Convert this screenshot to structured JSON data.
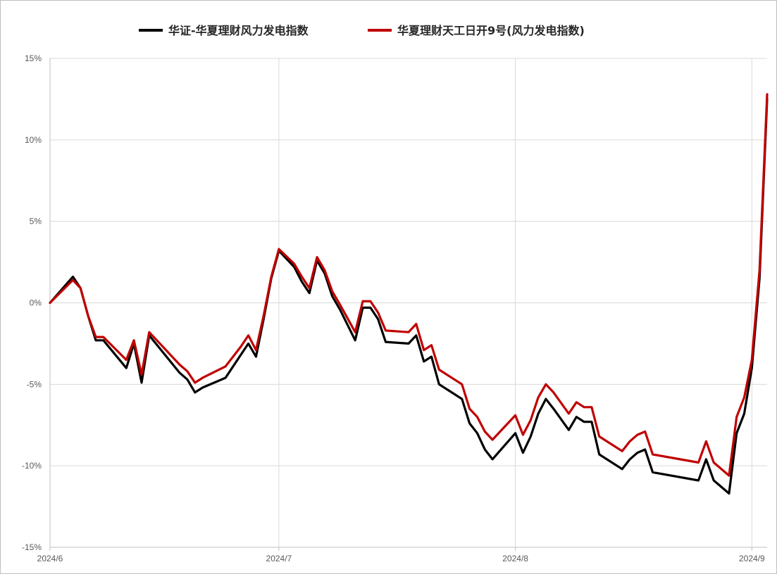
{
  "chart_data": {
    "type": "line",
    "title": "",
    "xlabel": "",
    "ylabel": "",
    "ylim": [
      -15,
      15
    ],
    "yticks": [
      -15,
      -10,
      -5,
      0,
      5,
      10,
      15
    ],
    "ytick_labels": [
      "-15%",
      "-10%",
      "-5%",
      "0%",
      "5%",
      "10%",
      "15%"
    ],
    "xticks": [
      "2024-06-01",
      "2024-07-01",
      "2024-08-01",
      "2024-09-01"
    ],
    "xtick_labels": [
      "2024/6",
      "2024/7",
      "2024/8",
      "2024/9"
    ],
    "xlim": [
      "2024-06-01",
      "2024-09-03"
    ],
    "grid": true,
    "legend_position": "top",
    "series": [
      {
        "name": "华证-华夏理财风力发电指数",
        "color": "#000000",
        "points": [
          [
            "2024-06-01",
            0.0
          ],
          [
            "2024-06-04",
            1.6
          ],
          [
            "2024-06-05",
            0.9
          ],
          [
            "2024-06-06",
            -0.8
          ],
          [
            "2024-06-07",
            -2.3
          ],
          [
            "2024-06-08",
            -2.3
          ],
          [
            "2024-06-11",
            -4.0
          ],
          [
            "2024-06-12",
            -2.5
          ],
          [
            "2024-06-13",
            -4.9
          ],
          [
            "2024-06-14",
            -2.0
          ],
          [
            "2024-06-18",
            -4.3
          ],
          [
            "2024-06-19",
            -4.7
          ],
          [
            "2024-06-20",
            -5.5
          ],
          [
            "2024-06-21",
            -5.2
          ],
          [
            "2024-06-24",
            -4.6
          ],
          [
            "2024-06-25",
            -3.9
          ],
          [
            "2024-06-26",
            -3.2
          ],
          [
            "2024-06-27",
            -2.5
          ],
          [
            "2024-06-28",
            -3.3
          ],
          [
            "2024-06-29",
            -1.0
          ],
          [
            "2024-06-30",
            1.5
          ],
          [
            "2024-07-01",
            3.2
          ],
          [
            "2024-07-03",
            2.2
          ],
          [
            "2024-07-04",
            1.3
          ],
          [
            "2024-07-05",
            0.6
          ],
          [
            "2024-07-06",
            2.6
          ],
          [
            "2024-07-07",
            1.8
          ],
          [
            "2024-07-08",
            0.4
          ],
          [
            "2024-07-09",
            -0.4
          ],
          [
            "2024-07-11",
            -2.3
          ],
          [
            "2024-07-12",
            -0.3
          ],
          [
            "2024-07-13",
            -0.3
          ],
          [
            "2024-07-14",
            -1.0
          ],
          [
            "2024-07-15",
            -2.4
          ],
          [
            "2024-07-18",
            -2.5
          ],
          [
            "2024-07-19",
            -2.0
          ],
          [
            "2024-07-20",
            -3.6
          ],
          [
            "2024-07-21",
            -3.3
          ],
          [
            "2024-07-22",
            -5.0
          ],
          [
            "2024-07-25",
            -5.9
          ],
          [
            "2024-07-26",
            -7.4
          ],
          [
            "2024-07-27",
            -8.0
          ],
          [
            "2024-07-28",
            -9.0
          ],
          [
            "2024-07-29",
            -9.6
          ],
          [
            "2024-08-01",
            -8.0
          ],
          [
            "2024-08-02",
            -9.2
          ],
          [
            "2024-08-03",
            -8.2
          ],
          [
            "2024-08-04",
            -6.8
          ],
          [
            "2024-08-05",
            -5.9
          ],
          [
            "2024-08-06",
            -6.5
          ],
          [
            "2024-08-08",
            -7.8
          ],
          [
            "2024-08-09",
            -7.0
          ],
          [
            "2024-08-10",
            -7.3
          ],
          [
            "2024-08-11",
            -7.3
          ],
          [
            "2024-08-12",
            -9.3
          ],
          [
            "2024-08-15",
            -10.2
          ],
          [
            "2024-08-16",
            -9.6
          ],
          [
            "2024-08-17",
            -9.2
          ],
          [
            "2024-08-18",
            -9.0
          ],
          [
            "2024-08-19",
            -10.4
          ],
          [
            "2024-08-25",
            -10.9
          ],
          [
            "2024-08-26",
            -9.6
          ],
          [
            "2024-08-27",
            -10.9
          ],
          [
            "2024-08-29",
            -11.7
          ],
          [
            "2024-08-30",
            -8.0
          ],
          [
            "2024-08-31",
            -6.8
          ],
          [
            "2024-09-01",
            -4.0
          ],
          [
            "2024-09-02",
            1.5
          ],
          [
            "2024-09-03",
            12.5
          ]
        ]
      },
      {
        "name": "华夏理财天工日开9号(风力发电指数)",
        "color": "#c00000",
        "points": [
          [
            "2024-06-01",
            0.0
          ],
          [
            "2024-06-04",
            1.4
          ],
          [
            "2024-06-05",
            0.9
          ],
          [
            "2024-06-06",
            -0.8
          ],
          [
            "2024-06-07",
            -2.1
          ],
          [
            "2024-06-08",
            -2.1
          ],
          [
            "2024-06-11",
            -3.5
          ],
          [
            "2024-06-12",
            -2.3
          ],
          [
            "2024-06-13",
            -4.4
          ],
          [
            "2024-06-14",
            -1.8
          ],
          [
            "2024-06-18",
            -3.8
          ],
          [
            "2024-06-19",
            -4.2
          ],
          [
            "2024-06-20",
            -4.9
          ],
          [
            "2024-06-21",
            -4.6
          ],
          [
            "2024-06-24",
            -3.9
          ],
          [
            "2024-06-25",
            -3.3
          ],
          [
            "2024-06-26",
            -2.7
          ],
          [
            "2024-06-27",
            -2.0
          ],
          [
            "2024-06-28",
            -2.9
          ],
          [
            "2024-06-29",
            -0.8
          ],
          [
            "2024-06-30",
            1.6
          ],
          [
            "2024-07-01",
            3.3
          ],
          [
            "2024-07-03",
            2.4
          ],
          [
            "2024-07-04",
            1.6
          ],
          [
            "2024-07-05",
            0.9
          ],
          [
            "2024-07-06",
            2.8
          ],
          [
            "2024-07-07",
            2.0
          ],
          [
            "2024-07-08",
            0.7
          ],
          [
            "2024-07-09",
            -0.1
          ],
          [
            "2024-07-11",
            -1.8
          ],
          [
            "2024-07-12",
            0.1
          ],
          [
            "2024-07-13",
            0.1
          ],
          [
            "2024-07-14",
            -0.6
          ],
          [
            "2024-07-15",
            -1.7
          ],
          [
            "2024-07-18",
            -1.8
          ],
          [
            "2024-07-19",
            -1.3
          ],
          [
            "2024-07-20",
            -2.9
          ],
          [
            "2024-07-21",
            -2.6
          ],
          [
            "2024-07-22",
            -4.1
          ],
          [
            "2024-07-25",
            -5.0
          ],
          [
            "2024-07-26",
            -6.5
          ],
          [
            "2024-07-27",
            -7.0
          ],
          [
            "2024-07-28",
            -7.9
          ],
          [
            "2024-07-29",
            -8.4
          ],
          [
            "2024-08-01",
            -6.9
          ],
          [
            "2024-08-02",
            -8.1
          ],
          [
            "2024-08-03",
            -7.2
          ],
          [
            "2024-08-04",
            -5.8
          ],
          [
            "2024-08-05",
            -5.0
          ],
          [
            "2024-08-06",
            -5.5
          ],
          [
            "2024-08-08",
            -6.8
          ],
          [
            "2024-08-09",
            -6.1
          ],
          [
            "2024-08-10",
            -6.4
          ],
          [
            "2024-08-11",
            -6.4
          ],
          [
            "2024-08-12",
            -8.2
          ],
          [
            "2024-08-15",
            -9.1
          ],
          [
            "2024-08-16",
            -8.5
          ],
          [
            "2024-08-17",
            -8.1
          ],
          [
            "2024-08-18",
            -7.9
          ],
          [
            "2024-08-19",
            -9.3
          ],
          [
            "2024-08-25",
            -9.8
          ],
          [
            "2024-08-26",
            -8.5
          ],
          [
            "2024-08-27",
            -9.8
          ],
          [
            "2024-08-29",
            -10.6
          ],
          [
            "2024-08-30",
            -7.0
          ],
          [
            "2024-08-31",
            -5.8
          ],
          [
            "2024-09-01",
            -3.5
          ],
          [
            "2024-09-02",
            2.0
          ],
          [
            "2024-09-03",
            12.8
          ]
        ]
      }
    ]
  }
}
